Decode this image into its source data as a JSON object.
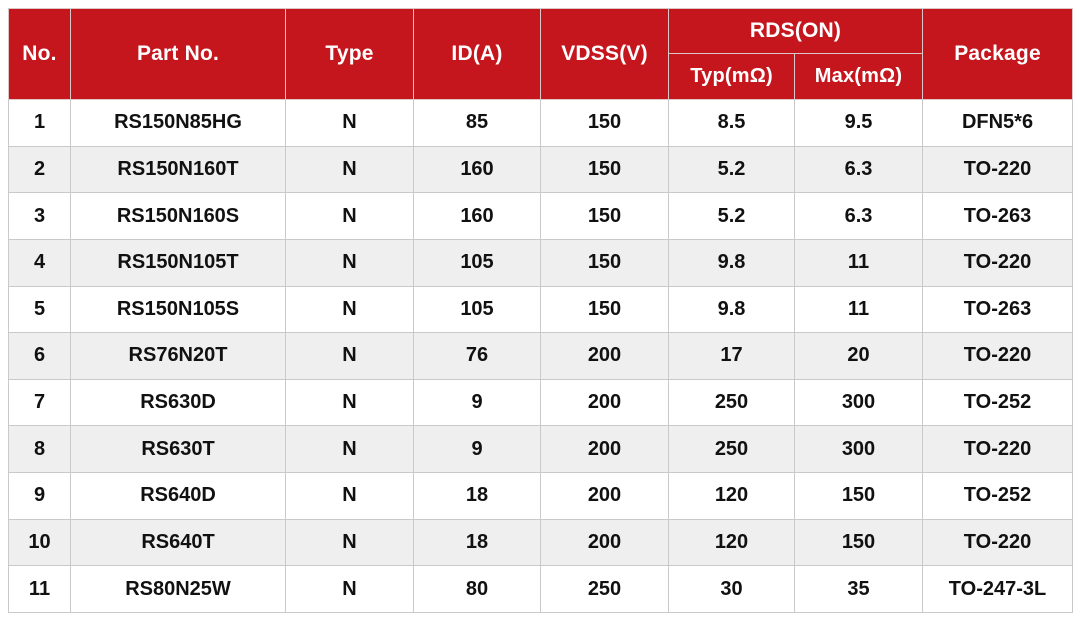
{
  "colors": {
    "header_bg": "#C5161D",
    "header_text": "#FFFFFF",
    "row_bg": "#FFFFFF",
    "row_alt_bg": "#EFEFEF",
    "border": "#C9C9C9",
    "cell_text": "#111111"
  },
  "chart_data": {
    "type": "table",
    "header": {
      "no": "No.",
      "part": "Part No.",
      "type": "Type",
      "id": "ID(A)",
      "vdss": "VDSS(V)",
      "rds_group": "RDS(ON)",
      "rds_typ": "Typ(mΩ)",
      "rds_max": "Max(mΩ)",
      "package": "Package"
    },
    "columns": [
      "No.",
      "Part No.",
      "Type",
      "ID(A)",
      "VDSS(V)",
      "RDS(ON) Typ(mΩ)",
      "RDS(ON) Max(mΩ)",
      "Package"
    ],
    "rows": [
      {
        "no": "1",
        "part": "RS150N85HG",
        "type": "N",
        "id": "85",
        "vdss": "150",
        "typ": "8.5",
        "max": "9.5",
        "pkg": "DFN5*6"
      },
      {
        "no": "2",
        "part": "RS150N160T",
        "type": "N",
        "id": "160",
        "vdss": "150",
        "typ": "5.2",
        "max": "6.3",
        "pkg": "TO-220"
      },
      {
        "no": "3",
        "part": "RS150N160S",
        "type": "N",
        "id": "160",
        "vdss": "150",
        "typ": "5.2",
        "max": "6.3",
        "pkg": "TO-263"
      },
      {
        "no": "4",
        "part": "RS150N105T",
        "type": "N",
        "id": "105",
        "vdss": "150",
        "typ": "9.8",
        "max": "11",
        "pkg": "TO-220"
      },
      {
        "no": "5",
        "part": "RS150N105S",
        "type": "N",
        "id": "105",
        "vdss": "150",
        "typ": "9.8",
        "max": "11",
        "pkg": "TO-263"
      },
      {
        "no": "6",
        "part": "RS76N20T",
        "type": "N",
        "id": "76",
        "vdss": "200",
        "typ": "17",
        "max": "20",
        "pkg": "TO-220"
      },
      {
        "no": "7",
        "part": "RS630D",
        "type": "N",
        "id": "9",
        "vdss": "200",
        "typ": "250",
        "max": "300",
        "pkg": "TO-252"
      },
      {
        "no": "8",
        "part": "RS630T",
        "type": "N",
        "id": "9",
        "vdss": "200",
        "typ": "250",
        "max": "300",
        "pkg": "TO-220"
      },
      {
        "no": "9",
        "part": "RS640D",
        "type": "N",
        "id": "18",
        "vdss": "200",
        "typ": "120",
        "max": "150",
        "pkg": "TO-252"
      },
      {
        "no": "10",
        "part": "RS640T",
        "type": "N",
        "id": "18",
        "vdss": "200",
        "typ": "120",
        "max": "150",
        "pkg": "TO-220"
      },
      {
        "no": "11",
        "part": "RS80N25W",
        "type": "N",
        "id": "80",
        "vdss": "250",
        "typ": "30",
        "max": "35",
        "pkg": "TO-247-3L"
      }
    ]
  }
}
